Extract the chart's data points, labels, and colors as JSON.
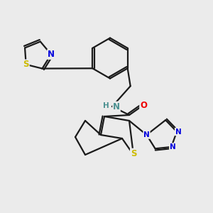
{
  "background_color": "#ebebeb",
  "bond_color": "#1a1a1a",
  "bond_lw": 1.6,
  "dbo": 0.028,
  "atom_colors": {
    "N_blue": "#0000dd",
    "N_teal": "#4a9090",
    "S": "#ccbb00",
    "O": "#ee0000"
  },
  "fs": 8.5,
  "fss": 7.5,
  "fig_w": 3.0,
  "fig_h": 3.0,
  "dpi": 100,
  "xlim": [
    0.0,
    3.0
  ],
  "ylim": [
    0.0,
    3.0
  ]
}
